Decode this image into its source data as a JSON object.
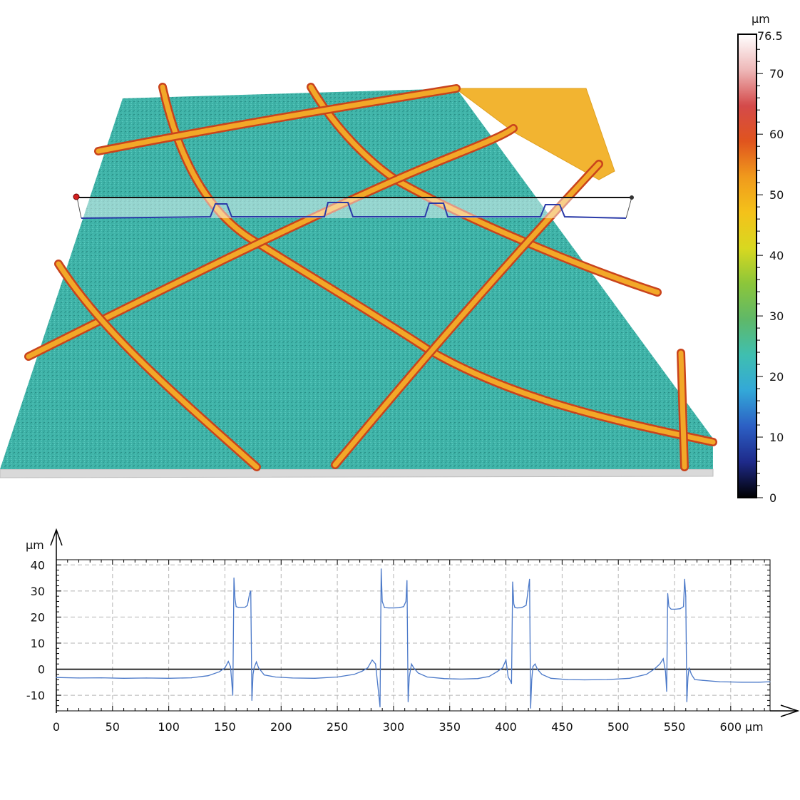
{
  "surface_view": {
    "scalebar_unit": "µm",
    "scalebar_max_label": "76.5",
    "scalebar_ticks": [
      "70",
      "60",
      "50",
      "40",
      "30",
      "20",
      "10",
      "0"
    ],
    "scalebar_tick_values": [
      70,
      60,
      50,
      40,
      30,
      20,
      10,
      0
    ],
    "scalebar_max": 76.5,
    "scalebar_colors": [
      "#000000",
      "#1e2a8a",
      "#2c5fc4",
      "#33a8d8",
      "#3fbfb0",
      "#5fb868",
      "#8cc63a",
      "#d8d820",
      "#f4c21a",
      "#f09a1c",
      "#e0541e",
      "#d44a4a",
      "#eeb8b8",
      "#ffffff"
    ],
    "surface_colors": {
      "base": "#3fb3a8",
      "base_dark": "#2a8e86",
      "ridge": "#f0a822",
      "ridge_edge": "#d8541c",
      "plateau": "#f2b431"
    }
  },
  "chart_data": {
    "type": "line",
    "title": "",
    "xlabel": "",
    "ylabel": "µm",
    "x_unit_label": "µm",
    "xlim": [
      0,
      635
    ],
    "ylim": [
      -16,
      42
    ],
    "x_ticks": [
      0,
      50,
      100,
      150,
      200,
      250,
      300,
      350,
      400,
      450,
      500,
      550,
      600
    ],
    "y_ticks": [
      -10,
      0,
      10,
      20,
      30,
      40
    ],
    "grid": true,
    "zero_line": true,
    "line_color": "#4a78c8",
    "series": [
      {
        "x": [
          0,
          20,
          40,
          60,
          80,
          100,
          120,
          135,
          145,
          150,
          153,
          155,
          157,
          158,
          159,
          160,
          162,
          165,
          168,
          170,
          172,
          173,
          174,
          175,
          176,
          178,
          180,
          185,
          195,
          210,
          230,
          250,
          265,
          272,
          277,
          281,
          284,
          286,
          288,
          289,
          290,
          292,
          296,
          300,
          305,
          309,
          311,
          312,
          313,
          314,
          316,
          318,
          322,
          330,
          345,
          360,
          375,
          385,
          392,
          397,
          400,
          402,
          404,
          405,
          406,
          407,
          408,
          410,
          414,
          418,
          421,
          422,
          423,
          424,
          426,
          428,
          432,
          440,
          455,
          470,
          490,
          510,
          525,
          532,
          537,
          540,
          542,
          543,
          544,
          545,
          547,
          551,
          555,
          558,
          559,
          560,
          561,
          562,
          563,
          565,
          568,
          575,
          590,
          610,
          625,
          635
        ],
        "y": [
          -3.2,
          -3.4,
          -3.3,
          -3.5,
          -3.4,
          -3.5,
          -3.3,
          -2.5,
          -1.0,
          0.5,
          3.0,
          1.0,
          -10.0,
          35.0,
          27.0,
          24.0,
          23.7,
          23.7,
          23.8,
          24.5,
          29.0,
          30.0,
          -12.0,
          -2.0,
          0.5,
          2.8,
          0.5,
          -2.2,
          -3.0,
          -3.4,
          -3.5,
          -3.0,
          -2.0,
          -0.8,
          0.5,
          3.5,
          2.0,
          -6.0,
          -14.5,
          38.5,
          26.0,
          23.6,
          23.5,
          23.5,
          23.6,
          24.0,
          26.0,
          34.0,
          -12.5,
          -3.0,
          2.0,
          0.5,
          -1.5,
          -3.0,
          -3.6,
          -3.8,
          -3.6,
          -2.8,
          -1.0,
          0.5,
          3.5,
          -3.0,
          -4.5,
          -5.5,
          33.5,
          25.0,
          23.6,
          23.5,
          23.6,
          24.5,
          34.5,
          -15.0,
          -4.0,
          1.0,
          2.0,
          0.0,
          -2.0,
          -3.5,
          -4.0,
          -4.1,
          -4.0,
          -3.5,
          -2.0,
          0.0,
          2.0,
          4.0,
          -1.0,
          -8.5,
          29.0,
          24.0,
          23.0,
          23.0,
          23.2,
          24.0,
          34.5,
          28.0,
          -12.5,
          -3.0,
          0.5,
          -2.0,
          -4.0,
          -4.3,
          -4.8,
          -5.0,
          -5.0,
          -4.8
        ]
      }
    ]
  }
}
